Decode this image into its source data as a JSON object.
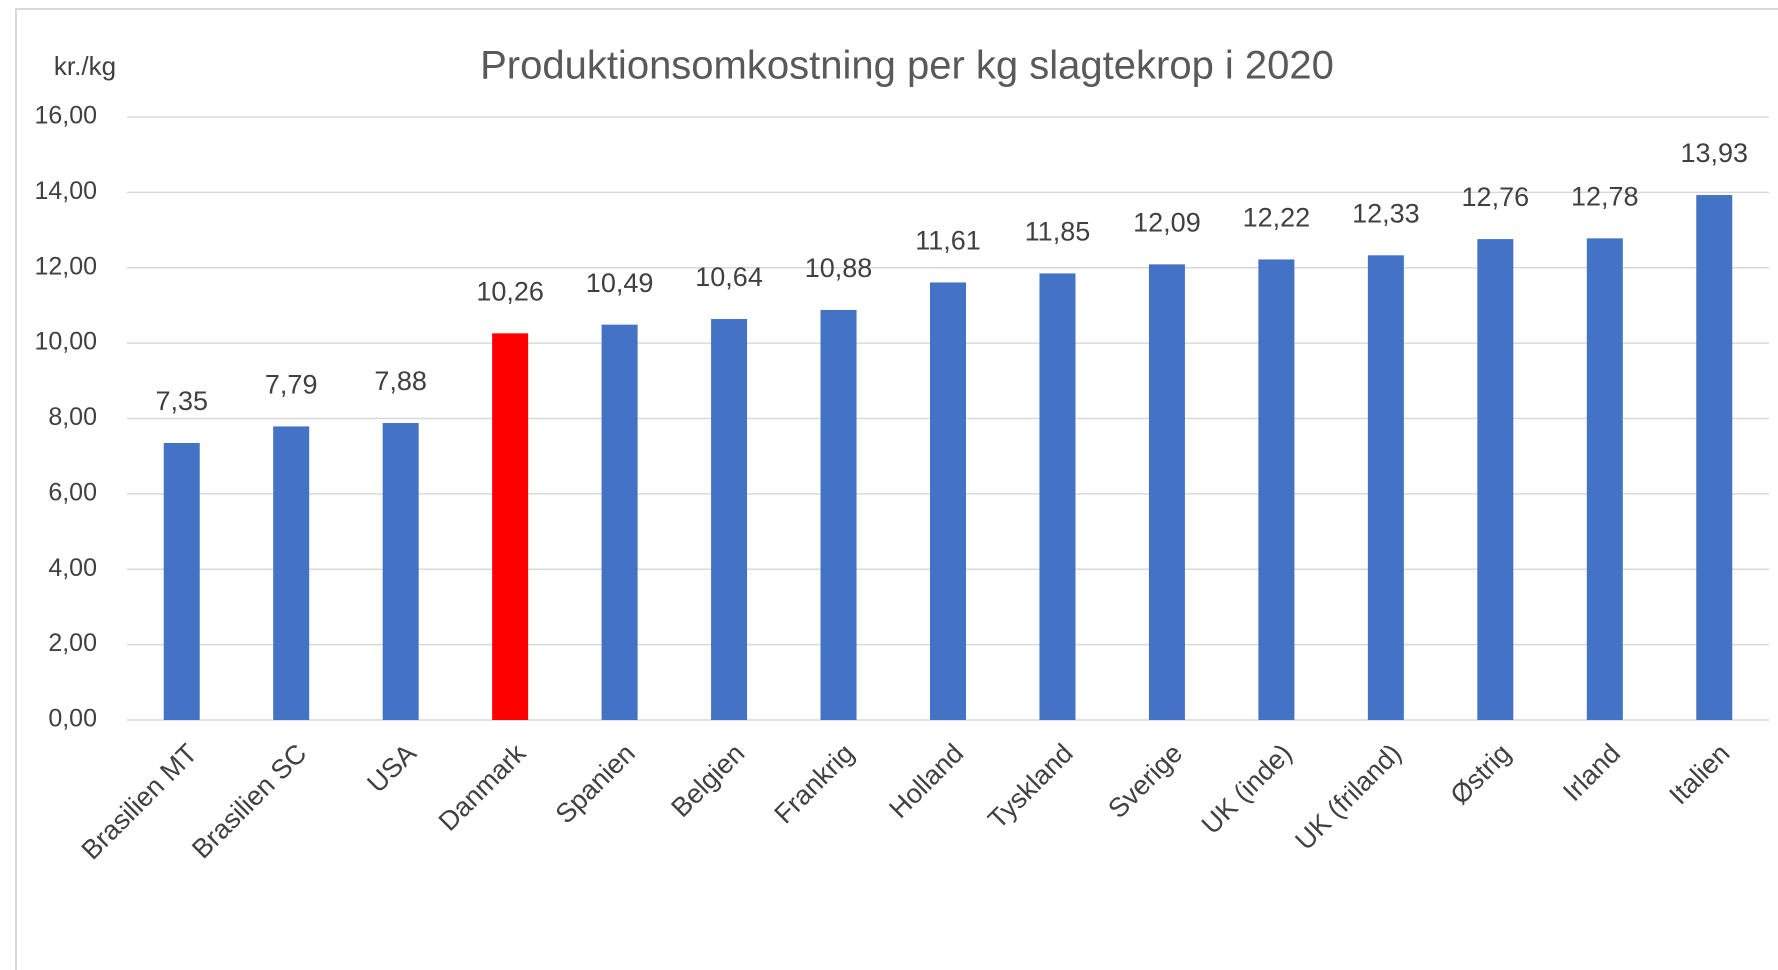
{
  "chart_data": {
    "type": "bar",
    "title": "Produktionsomkostning  per kg slagtekrop i 2020",
    "y_label": "kr./kg",
    "categories": [
      "Brasilien MT",
      "Brasilien SC",
      "USA",
      "Danmark",
      "Spanien",
      "Belgien",
      "Frankrig",
      "Holland",
      "Tyskland",
      "Sverige",
      "UK (inde)",
      "UK (friland)",
      "Østrig",
      "Irland",
      "Italien"
    ],
    "values": [
      7.35,
      7.79,
      7.88,
      10.26,
      10.49,
      10.64,
      10.88,
      11.61,
      11.85,
      12.09,
      12.22,
      12.33,
      12.76,
      12.78,
      13.93
    ],
    "value_labels": [
      "7,35",
      "7,79",
      "7,88",
      "10,26",
      "10,49",
      "10,64",
      "10,88",
      "11,61",
      "11,85",
      "12,09",
      "12,22",
      "12,33",
      "12,76",
      "12,78",
      "13,93"
    ],
    "colors": [
      "#4472c4",
      "#4472c4",
      "#4472c4",
      "#ff0000",
      "#4472c4",
      "#4472c4",
      "#4472c4",
      "#4472c4",
      "#4472c4",
      "#4472c4",
      "#4472c4",
      "#4472c4",
      "#4472c4",
      "#4472c4",
      "#4472c4"
    ],
    "ylim": [
      0,
      16
    ],
    "yticks": [
      {
        "value": 0,
        "label": "0,00"
      },
      {
        "value": 2,
        "label": "2,00"
      },
      {
        "value": 4,
        "label": "4,00"
      },
      {
        "value": 6,
        "label": "6,00"
      },
      {
        "value": 8,
        "label": "8,00"
      },
      {
        "value": 10,
        "label": "10,00"
      },
      {
        "value": 12,
        "label": "12,00"
      },
      {
        "value": 14,
        "label": "14,00"
      },
      {
        "value": 16,
        "label": "16,00"
      }
    ],
    "grid": true
  }
}
